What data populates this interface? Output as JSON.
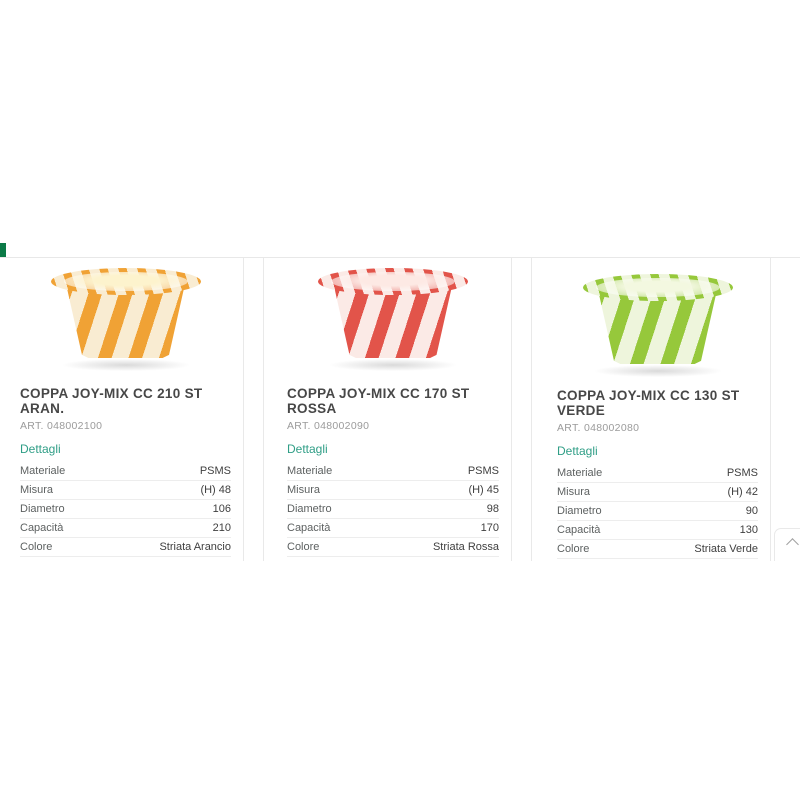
{
  "page": {
    "background": "#ffffff"
  },
  "accents": {
    "brand_green": "#0b7a47",
    "link_green": "#2f9e86",
    "divider_gray": "#e9e9e9",
    "title_gray": "#474747",
    "art_gray": "#9b9b9b"
  },
  "scroll_top": {
    "icon": "chevron-up"
  },
  "products": [
    {
      "title": "COPPA JOY-MIX CC 210 ST ARAN.",
      "art": "ART. 048002100",
      "details_label": "Dettagli",
      "image": "orange-striped-cup",
      "cup": {
        "stripe": "#f0a235",
        "base": "#f9ecd2",
        "inner": "#fdf3cd"
      },
      "specs": [
        {
          "label": "Materiale",
          "value": "PSMS"
        },
        {
          "label": "Misura",
          "value": "(H) 48"
        },
        {
          "label": "Diametro",
          "value": "106"
        },
        {
          "label": "Capacità",
          "value": "210"
        },
        {
          "label": "Colore",
          "value": "Striata Arancio"
        }
      ]
    },
    {
      "title": "COPPA JOY-MIX CC 170 ST ROSSA",
      "art": "ART. 048002090",
      "details_label": "Dettagli",
      "image": "red-striped-cup",
      "cup": {
        "stripe": "#e2544a",
        "base": "#fbeae6",
        "inner": "#fde9e4"
      },
      "specs": [
        {
          "label": "Materiale",
          "value": "PSMS"
        },
        {
          "label": "Misura",
          "value": "(H) 45"
        },
        {
          "label": "Diametro",
          "value": "98"
        },
        {
          "label": "Capacità",
          "value": "170"
        },
        {
          "label": "Colore",
          "value": "Striata Rossa"
        }
      ]
    },
    {
      "title": "COPPA JOY-MIX CC 130 ST VERDE",
      "art": "ART. 048002080",
      "details_label": "Dettagli",
      "image": "green-striped-cup",
      "cup": {
        "stripe": "#96c83b",
        "base": "#eef5dc",
        "inner": "#f3f8e0"
      },
      "specs": [
        {
          "label": "Materiale",
          "value": "PSMS"
        },
        {
          "label": "Misura",
          "value": "(H) 42"
        },
        {
          "label": "Diametro",
          "value": "90"
        },
        {
          "label": "Capacità",
          "value": "130"
        },
        {
          "label": "Colore",
          "value": "Striata Verde"
        }
      ]
    }
  ]
}
